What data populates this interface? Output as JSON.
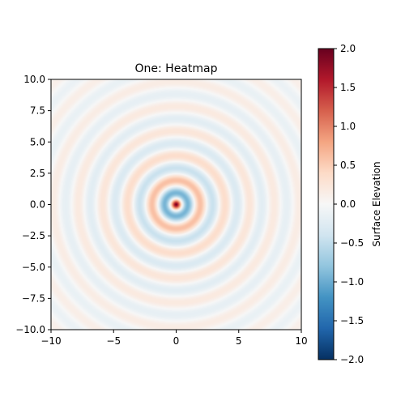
{
  "chart_data": {
    "type": "heatmap",
    "title": "One: Heatmap",
    "xlabel": "",
    "ylabel": "",
    "xlim": [
      -10,
      10
    ],
    "ylim": [
      -10,
      10
    ],
    "x_ticks": [
      -10,
      -5,
      0,
      5,
      10
    ],
    "y_ticks": [
      10.0,
      7.5,
      5.0,
      2.5,
      0.0,
      -2.5,
      -5.0,
      -7.5,
      -10.0
    ],
    "x_tick_labels": [
      "−10",
      "−5",
      "0",
      "5",
      "10"
    ],
    "y_tick_labels": [
      "10.0",
      "7.5",
      "5.0",
      "2.5",
      "0.0",
      "−2.5",
      "−5.0",
      "−7.5",
      "−10.0"
    ],
    "colormap": "RdBu_r",
    "vmin": -2.0,
    "vmax": 2.0,
    "pattern": "radial ripple, 2 at center, rings decay outward",
    "colorbar": {
      "label": "Surface Elevation",
      "ticks": [
        2.0,
        1.5,
        1.0,
        0.5,
        0.0,
        -0.5,
        -1.0,
        -1.5,
        -2.0
      ],
      "tick_labels": [
        "2.0",
        "1.5",
        "1.0",
        "0.5",
        "0.0",
        "−0.5",
        "−1.0",
        "−1.5",
        "−2.0"
      ]
    },
    "grid": false
  }
}
